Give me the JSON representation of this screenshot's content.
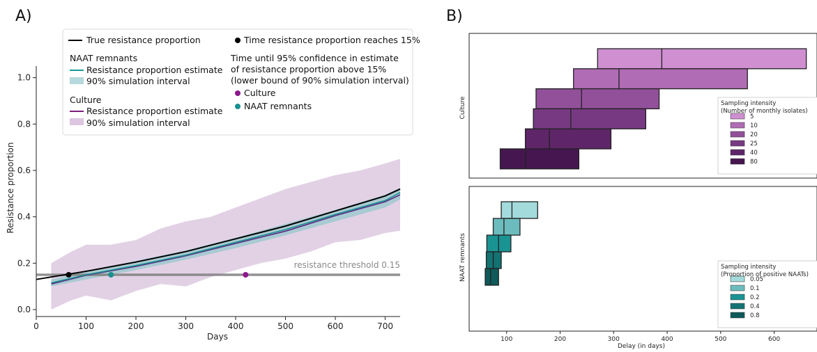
{
  "panel_labels": {
    "a": "A)",
    "b": "B)"
  },
  "chart_data": [
    {
      "type": "line",
      "xlabel": "Days",
      "ylabel": "Resistance proportion",
      "xlim": [
        0,
        730
      ],
      "ylim": [
        -0.03,
        1.05
      ],
      "xticks": [
        0,
        100,
        200,
        300,
        400,
        500,
        600,
        700
      ],
      "yticks": [
        0.0,
        0.2,
        0.4,
        0.6,
        0.8,
        1.0
      ],
      "threshold": {
        "value": 0.15,
        "label": "resistance threshold 0.15",
        "color": "#7f7f7f"
      },
      "legend": {
        "true_line": "True resistance proportion",
        "naat_header": "NAAT remnants",
        "naat_estimate": "Resistance proportion estimate",
        "naat_interval": "90% simulation interval",
        "culture_header": "Culture",
        "culture_estimate": "Resistance proportion estimate",
        "culture_interval": "90% simulation interval",
        "time_point": "Time resistance proportion reaches 15%",
        "confidence_line1": "Time until 95% confidence in estimate",
        "confidence_line2": "of resistance proportion above 15%",
        "confidence_line3": "(lower bound of 90% simulation interval)",
        "culture_point": "Culture",
        "naat_point": "NAAT remnants"
      },
      "series": [
        {
          "name": "True resistance proportion",
          "color": "#000000",
          "x": [
            0,
            100,
            200,
            300,
            400,
            500,
            600,
            700,
            730
          ],
          "y": [
            0.13,
            0.165,
            0.205,
            0.25,
            0.305,
            0.36,
            0.425,
            0.49,
            0.52
          ]
        },
        {
          "name": "NAAT remnants",
          "color": "#1a8f8f",
          "x": [
            30,
            100,
            200,
            300,
            400,
            500,
            600,
            700,
            730
          ],
          "y": [
            0.115,
            0.15,
            0.19,
            0.235,
            0.29,
            0.345,
            0.41,
            0.47,
            0.505
          ]
        },
        {
          "name": "Culture",
          "color": "#5b2a86",
          "x": [
            30,
            100,
            200,
            300,
            400,
            500,
            600,
            700,
            730
          ],
          "y": [
            0.11,
            0.148,
            0.186,
            0.232,
            0.285,
            0.338,
            0.405,
            0.465,
            0.495
          ]
        }
      ],
      "bands": [
        {
          "name": "Culture 90% simulation interval",
          "color": "#d8c2dc",
          "x": [
            30,
            70,
            100,
            150,
            200,
            250,
            300,
            350,
            400,
            450,
            500,
            550,
            600,
            650,
            700,
            730
          ],
          "lo": [
            0.0,
            0.04,
            0.06,
            0.04,
            0.08,
            0.11,
            0.1,
            0.14,
            0.17,
            0.2,
            0.22,
            0.25,
            0.29,
            0.3,
            0.33,
            0.34
          ],
          "hi": [
            0.2,
            0.25,
            0.28,
            0.28,
            0.3,
            0.35,
            0.38,
            0.4,
            0.44,
            0.48,
            0.52,
            0.55,
            0.58,
            0.6,
            0.63,
            0.65
          ]
        },
        {
          "name": "NAAT 90% simulation interval",
          "color": "#9fc9cf",
          "x": [
            30,
            100,
            200,
            300,
            400,
            500,
            600,
            700,
            730
          ],
          "lo": [
            0.1,
            0.13,
            0.17,
            0.215,
            0.265,
            0.32,
            0.38,
            0.44,
            0.475
          ],
          "hi": [
            0.13,
            0.165,
            0.21,
            0.255,
            0.31,
            0.37,
            0.43,
            0.495,
            0.525
          ]
        }
      ],
      "points": [
        {
          "name": "Time resistance proportion reaches 15%",
          "x": 65,
          "y": 0.15,
          "color": "#000000"
        },
        {
          "name": "NAAT remnants",
          "x": 150,
          "y": 0.15,
          "color": "#1a8f8f"
        },
        {
          "name": "Culture",
          "x": 420,
          "y": 0.15,
          "color": "#8b1a8b"
        }
      ]
    },
    {
      "type": "box",
      "xlabel": "Delay (in days)",
      "xlim": [
        30,
        680
      ],
      "xticks": [
        100,
        200,
        300,
        400,
        500,
        600
      ],
      "facets": [
        {
          "ylabel": "Culture",
          "legend_title_line1": "Sampling intensity",
          "legend_title_line2": "(Number of monthly isolates)",
          "boxes": [
            {
              "label": "5",
              "color": "#cf8fd1",
              "q1": 270,
              "median": 390,
              "q3": 660
            },
            {
              "label": "10",
              "color": "#b06cb4",
              "q1": 225,
              "median": 310,
              "q3": 550
            },
            {
              "label": "20",
              "color": "#92509a",
              "q1": 155,
              "median": 240,
              "q3": 385
            },
            {
              "label": "25",
              "color": "#773a82",
              "q1": 150,
              "median": 220,
              "q3": 360
            },
            {
              "label": "40",
              "color": "#5e2568",
              "q1": 135,
              "median": 180,
              "q3": 295
            },
            {
              "label": "80",
              "color": "#461650",
              "q1": 88,
              "median": 135,
              "q3": 235
            }
          ]
        },
        {
          "ylabel": "NAAT remnants",
          "legend_title_line1": "Sampling intensity",
          "legend_title_line2": "(Proportion of positive NAATs)",
          "boxes": [
            {
              "label": "0.05",
              "color": "#a3dbdc",
              "q1": 90,
              "median": 110,
              "q3": 158
            },
            {
              "label": "0.1",
              "color": "#6cbcbe",
              "q1": 75,
              "median": 95,
              "q3": 125
            },
            {
              "label": "0.2",
              "color": "#1a9393",
              "q1": 63,
              "median": 85,
              "q3": 108
            },
            {
              "label": "0.4",
              "color": "#137272",
              "q1": 62,
              "median": 75,
              "q3": 90
            },
            {
              "label": "0.8",
              "color": "#0e5959",
              "q1": 60,
              "median": 70,
              "q3": 85
            }
          ]
        }
      ]
    }
  ]
}
